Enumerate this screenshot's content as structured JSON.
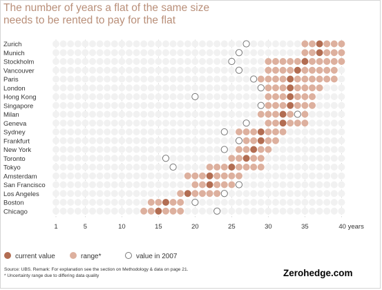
{
  "title": {
    "line1": "The number of years a flat of the same size",
    "line2": "needs to be rented to pay for the flat"
  },
  "colors": {
    "background_dot": "#f1f1f1",
    "range": "#ddb09e",
    "current": "#b26d52",
    "hollow_stroke": "#777777",
    "title": "#b98f79"
  },
  "legend": {
    "current": "current value",
    "range": "range*",
    "y2007": "value in 2007"
  },
  "source": {
    "line1": "Source: UBS. Remark: For explanation see the section on Methodology & data on page 21.",
    "line2": "* Uncertainty range due to differing data quality"
  },
  "watermark": "Zerohedge.com",
  "chart_data": {
    "type": "dot-range",
    "title": "The number of years a flat of the same size needs to be rented to pay for the flat",
    "xlim": [
      1,
      40
    ],
    "x_ticks": [
      1,
      5,
      10,
      15,
      20,
      25,
      30,
      35,
      40
    ],
    "x_tick_labels": [
      "1",
      "5",
      "10",
      "15",
      "20",
      "25",
      "30",
      "35",
      "40 years"
    ],
    "legend": [
      "current value",
      "range*",
      "value in 2007"
    ],
    "cities": [
      {
        "name": "Zurich",
        "range": [
          35,
          40
        ],
        "current": 37,
        "y2007": 27
      },
      {
        "name": "Munich",
        "range": [
          35,
          40
        ],
        "current": 37,
        "y2007": 26
      },
      {
        "name": "Stockholm",
        "range": [
          30,
          40
        ],
        "current": 35,
        "y2007": 25
      },
      {
        "name": "Vancouver",
        "range": [
          30,
          39
        ],
        "current": 34,
        "y2007": 26
      },
      {
        "name": "Paris",
        "range": [
          29,
          39
        ],
        "current": 33,
        "y2007": 28
      },
      {
        "name": "London",
        "range": [
          30,
          37
        ],
        "current": 33,
        "y2007": 29
      },
      {
        "name": "Hong Kong",
        "range": [
          30,
          36
        ],
        "current": 33,
        "y2007": 20
      },
      {
        "name": "Singapore",
        "range": [
          30,
          36
        ],
        "current": 33,
        "y2007": 29
      },
      {
        "name": "Milan",
        "range": [
          29,
          35
        ],
        "current": 32,
        "y2007": 34
      },
      {
        "name": "Geneva",
        "range": [
          30,
          35
        ],
        "current": 32,
        "y2007": 27
      },
      {
        "name": "Sydney",
        "range": [
          26,
          32
        ],
        "current": 29,
        "y2007": 24
      },
      {
        "name": "Frankfurt",
        "range": [
          26,
          31
        ],
        "current": 29,
        "y2007": 26
      },
      {
        "name": "New York",
        "range": [
          26,
          30
        ],
        "current": 28,
        "y2007": 24
      },
      {
        "name": "Toronto",
        "range": [
          25,
          29
        ],
        "current": 27,
        "y2007": 16
      },
      {
        "name": "Tokyo",
        "range": [
          22,
          29
        ],
        "current": 25,
        "y2007": 17
      },
      {
        "name": "Amsterdam",
        "range": [
          19,
          26
        ],
        "current": 22,
        "y2007": null
      },
      {
        "name": "San Francisco",
        "range": [
          20,
          25
        ],
        "current": 22,
        "y2007": 26
      },
      {
        "name": "Los Angeles",
        "range": [
          18,
          23
        ],
        "current": 19,
        "y2007": 24
      },
      {
        "name": "Boston",
        "range": [
          14,
          18
        ],
        "current": 16,
        "y2007": 20
      },
      {
        "name": "Chicago",
        "range": [
          13,
          18
        ],
        "current": 15,
        "y2007": 23
      }
    ]
  }
}
